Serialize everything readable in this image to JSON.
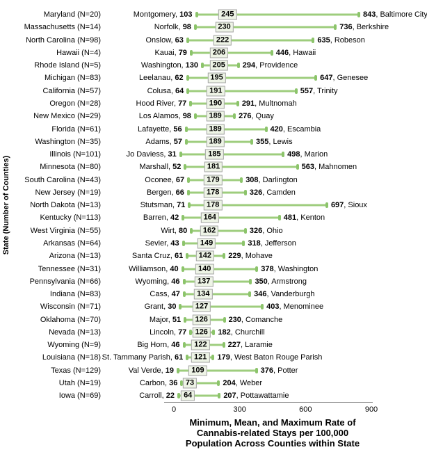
{
  "chart_data": {
    "type": "bar",
    "variant": "horizontal-min-mean-max-range",
    "xlabel_lines": [
      "Minimum, Mean, and Maximum Rate of",
      "Cannabis-related Stays per 100,000",
      "Population Across  Counties within State"
    ],
    "ylabel": "State (Number of Counties)",
    "xlim": [
      0,
      900
    ],
    "xticks": [
      0,
      300,
      600,
      900
    ],
    "grid": false,
    "legend": false,
    "bar_color": "#9ecd7d",
    "cap_color": "#8cc46b",
    "mean_box_fill": "#eef4e6",
    "mean_box_border": "#a3a3a3",
    "rows": [
      {
        "state": "Maryland",
        "n": 20,
        "min_county": "Montgomery",
        "min": 103,
        "mean": 245,
        "max": 843,
        "max_county": "Baltimore City"
      },
      {
        "state": "Massachusetts",
        "n": 14,
        "min_county": "Norfolk",
        "min": 98,
        "mean": 230,
        "max": 736,
        "max_county": "Berkshire"
      },
      {
        "state": "North Carolina",
        "n": 98,
        "min_county": "Onslow",
        "min": 63,
        "mean": 222,
        "max": 635,
        "max_county": "Robeson"
      },
      {
        "state": "Hawaii",
        "n": 4,
        "min_county": "Kauai",
        "min": 79,
        "mean": 206,
        "max": 446,
        "max_county": "Hawaii"
      },
      {
        "state": "Rhode Island",
        "n": 5,
        "min_county": "Washington",
        "min": 130,
        "mean": 205,
        "max": 294,
        "max_county": "Providence"
      },
      {
        "state": "Michigan",
        "n": 83,
        "min_county": "Leelanau",
        "min": 62,
        "mean": 195,
        "max": 647,
        "max_county": "Genesee"
      },
      {
        "state": "California",
        "n": 57,
        "min_county": "Colusa",
        "min": 64,
        "mean": 191,
        "max": 557,
        "max_county": "Trinity"
      },
      {
        "state": "Oregon",
        "n": 28,
        "min_county": "Hood River",
        "min": 77,
        "mean": 190,
        "max": 291,
        "max_county": "Multnomah"
      },
      {
        "state": "New Mexico",
        "n": 29,
        "min_county": "Los Alamos",
        "min": 98,
        "mean": 189,
        "max": 276,
        "max_county": "Quay"
      },
      {
        "state": "Florida",
        "n": 61,
        "min_county": "Lafayette",
        "min": 56,
        "mean": 189,
        "max": 420,
        "max_county": "Escambia"
      },
      {
        "state": "Washington",
        "n": 35,
        "min_county": "Adams",
        "min": 57,
        "mean": 189,
        "max": 355,
        "max_county": "Lewis"
      },
      {
        "state": "Illinois",
        "n": 101,
        "min_county": "Jo Daviess",
        "min": 31,
        "mean": 185,
        "max": 498,
        "max_county": "Marion"
      },
      {
        "state": "Minnesota",
        "n": 80,
        "min_county": "Marshall",
        "min": 52,
        "mean": 181,
        "max": 563,
        "max_county": "Mahnomen"
      },
      {
        "state": "South Carolina",
        "n": 43,
        "min_county": "Oconee",
        "min": 67,
        "mean": 179,
        "max": 308,
        "max_county": "Darlington"
      },
      {
        "state": "New Jersey",
        "n": 19,
        "min_county": "Bergen",
        "min": 66,
        "mean": 178,
        "max": 326,
        "max_county": "Camden"
      },
      {
        "state": "North Dakota",
        "n": 13,
        "min_county": "Stutsman",
        "min": 71,
        "mean": 178,
        "max": 697,
        "max_county": "Sioux"
      },
      {
        "state": "Kentucky",
        "n": 113,
        "min_county": "Barren",
        "min": 42,
        "mean": 164,
        "max": 481,
        "max_county": "Kenton"
      },
      {
        "state": "West Virginia",
        "n": 55,
        "min_county": "Wirt",
        "min": 80,
        "mean": 162,
        "max": 326,
        "max_county": "Ohio"
      },
      {
        "state": "Arkansas",
        "n": 64,
        "min_county": "Sevier",
        "min": 43,
        "mean": 149,
        "max": 318,
        "max_county": "Jefferson"
      },
      {
        "state": "Arizona",
        "n": 13,
        "min_county": "Santa Cruz",
        "min": 61,
        "mean": 142,
        "max": 229,
        "max_county": "Mohave"
      },
      {
        "state": "Tennessee",
        "n": 31,
        "min_county": "Williamson",
        "min": 40,
        "mean": 140,
        "max": 378,
        "max_county": "Washington"
      },
      {
        "state": "Pennsylvania",
        "n": 66,
        "min_county": "Wyoming",
        "min": 46,
        "mean": 137,
        "max": 350,
        "max_county": "Armstrong"
      },
      {
        "state": "Indiana",
        "n": 83,
        "min_county": "Cass",
        "min": 47,
        "mean": 134,
        "max": 346,
        "max_county": "Vanderburgh"
      },
      {
        "state": "Wisconsin",
        "n": 71,
        "min_county": "Grant",
        "min": 30,
        "mean": 127,
        "max": 403,
        "max_county": "Menominee"
      },
      {
        "state": "Oklahoma",
        "n": 70,
        "min_county": "Major",
        "min": 51,
        "mean": 126,
        "max": 230,
        "max_county": "Comanche"
      },
      {
        "state": "Nevada",
        "n": 13,
        "min_county": "Lincoln",
        "min": 77,
        "mean": 126,
        "max": 182,
        "max_county": "Churchill"
      },
      {
        "state": "Wyoming",
        "n": 9,
        "min_county": "Big Horn",
        "min": 46,
        "mean": 122,
        "max": 227,
        "max_county": "Laramie"
      },
      {
        "state": "Louisiana",
        "n": 18,
        "min_county": "St. Tammany Parish",
        "min": 61,
        "mean": 121,
        "max": 179,
        "max_county": "West Baton Rouge Parish"
      },
      {
        "state": "Texas",
        "n": 129,
        "min_county": "Val Verde",
        "min": 19,
        "mean": 109,
        "max": 376,
        "max_county": "Potter"
      },
      {
        "state": "Utah",
        "n": 19,
        "min_county": "Carbon",
        "min": 36,
        "mean": 73,
        "max": 204,
        "max_county": "Weber"
      },
      {
        "state": "Iowa",
        "n": 69,
        "min_county": "Carroll",
        "min": 22,
        "mean": 64,
        "max": 207,
        "max_county": "Pottawattamie"
      }
    ]
  }
}
